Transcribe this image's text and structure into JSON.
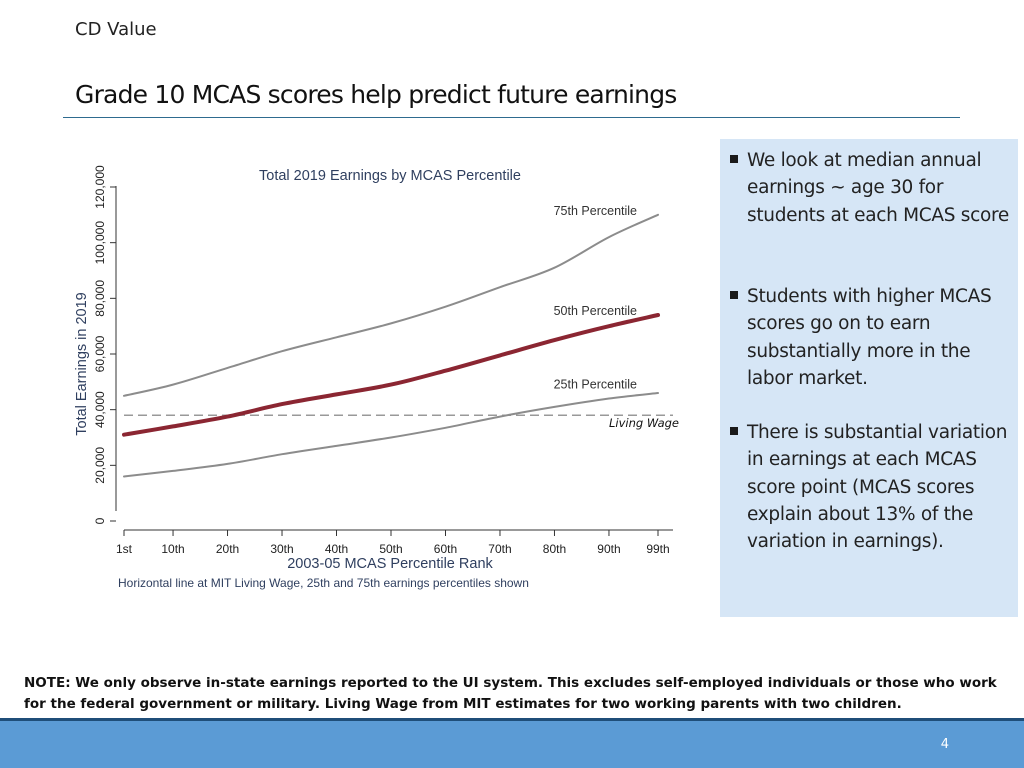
{
  "header": {
    "label": "CD Value"
  },
  "slide": {
    "title": "Grade 10 MCAS scores help predict future earnings"
  },
  "chart_data": {
    "type": "line",
    "title": "Total 2019 Earnings by MCAS Percentile",
    "xlabel": "2003-05 MCAS Percentile Rank",
    "ylabel": "Total Earnings in 2019",
    "caption": "Horizontal line at MIT Living Wage, 25th and 75th earnings percentiles shown",
    "x_tick_labels": [
      "1st",
      "10th",
      "20th",
      "30th",
      "40th",
      "50th",
      "60th",
      "70th",
      "80th",
      "90th",
      "99th"
    ],
    "x_tick_values": [
      1,
      10,
      20,
      30,
      40,
      50,
      60,
      70,
      80,
      90,
      99
    ],
    "y_tick_labels": [
      "0",
      "20,000",
      "40,000",
      "60,000",
      "80,000",
      "100,000",
      "120,000"
    ],
    "y_tick_values": [
      0,
      20000,
      40000,
      60000,
      80000,
      100000,
      120000
    ],
    "xlim": [
      1,
      99
    ],
    "ylim": [
      0,
      120000
    ],
    "grid": false,
    "reference_line": {
      "label": "Living Wage",
      "value": 38000,
      "style": "dashed",
      "color": "#999999"
    },
    "series": [
      {
        "name": "75th Percentile",
        "color": "#8c8c8c",
        "x": [
          1,
          10,
          20,
          30,
          40,
          50,
          60,
          70,
          80,
          90,
          99
        ],
        "values": [
          45000,
          49000,
          55000,
          61000,
          66000,
          71000,
          77000,
          84000,
          91000,
          102000,
          110000
        ]
      },
      {
        "name": "50th Percentile",
        "color": "#8b2632",
        "x": [
          1,
          10,
          20,
          30,
          40,
          50,
          60,
          70,
          80,
          90,
          99
        ],
        "values": [
          31000,
          34000,
          37500,
          42000,
          45500,
          49000,
          54000,
          59500,
          65000,
          70000,
          74000
        ]
      },
      {
        "name": "25th Percentile",
        "color": "#8c8c8c",
        "x": [
          1,
          10,
          20,
          30,
          40,
          50,
          60,
          70,
          80,
          90,
          99
        ],
        "values": [
          16000,
          18000,
          20500,
          24000,
          27000,
          30000,
          33500,
          37500,
          41000,
          44000,
          46000
        ]
      }
    ]
  },
  "sidebar": {
    "bullets": [
      "We look at median annual earnings ~ age 30 for students at each MCAS score",
      "Students with higher MCAS scores go on to earn substantially more in the labor market.",
      "There is substantial variation in earnings at each MCAS score point (MCAS scores explain about 13% of the variation in earnings)."
    ]
  },
  "note": "NOTE: We only observe in-state earnings reported to the UI system. This excludes self-employed individuals or those who work for the federal government or military. Living Wage from MIT estimates for two working parents with two children.",
  "footer": {
    "page_number": "4"
  }
}
